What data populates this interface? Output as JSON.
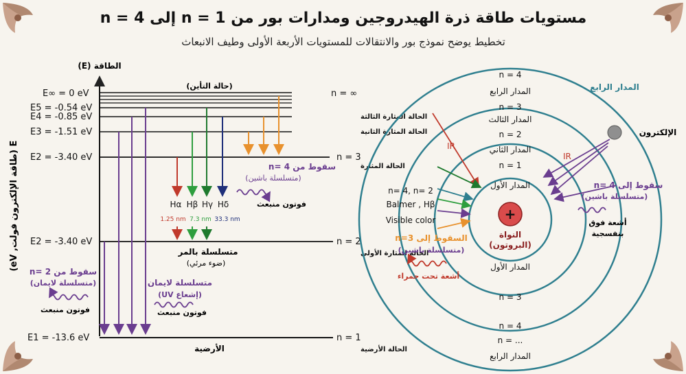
{
  "title": "مستويات طاقة ذرة الهيدروجين ومدارات بور من n = 1 إلى n = 4",
  "subtitle": "تخطيط يوضح نموذج بور والانتقالات للمستويات الأربعة الأولى وطيف الانبعاث",
  "energy": {
    "axis_label": "الطاقة (E)",
    "y_label": "E (طاقة الإلكترون فولت, eV)",
    "ionization_label": "(حالة التأين)",
    "levels": {
      "inf": "E∞ = 0 eV",
      "e5": "E5 = -0.54 eV",
      "e4": "E4 = -0.85 eV",
      "e3": "E3 = -1.51 eV",
      "e2a": "E2 = -3.40 eV",
      "e2b": "E2 = -3.40 eV",
      "e1": "E1 = -13.6 eV"
    },
    "n_labels": {
      "inf": "n = ∞",
      "n3": "n = 3",
      "n2": "n = 2",
      "n1": "n = 1"
    },
    "state_labels": {
      "third_excited": "الحالة المثارة الثالثة",
      "second_excited": "الحالة المثارة الثانية",
      "excited": "الحالة المثارة",
      "first_excited": "الحالة المثارة الأولى",
      "ground": "الحالة الأرضية",
      "ground_short": "الأرضية"
    },
    "paschen": {
      "line1": "سقوط من n= 4",
      "line2": "(متسلسلة باشين)",
      "photon": "فوتون منبعث"
    },
    "balmer": {
      "h_alpha": "Hα",
      "h_beta": "Hβ",
      "h_gamma": "Hγ",
      "h_delta": "Hδ",
      "wl1": "1.25 nm",
      "wl2": "7.3 nm",
      "wl3": "33.3 nm",
      "label1": "متسلسلة بالمر",
      "label2": "(ضوء مرئي)"
    },
    "lyman": {
      "line1": "متسلسلة لايمان",
      "line2": "(إشعاع UV)",
      "photon": "فوتون منبعث"
    },
    "lyman_left": {
      "line1": "سقوط من n= 2",
      "line2": "(متسلسلة لايمان)",
      "photon": "فوتون منبعث"
    }
  },
  "orbit": {
    "n4_top": "n = 4",
    "orbit4_top": "المدار الرابع",
    "orbit4_label": "المدار الرابع",
    "orbit3_top": "المدار الثالث",
    "n3_top": "n = 3",
    "n2_top": "n = 2",
    "orbit2_top": "المدار الثاني",
    "n1_top": "n = 1",
    "orbit1_top": "المدار الأول",
    "nucleus_plus": "+",
    "nucleus_line1": "النواة",
    "nucleus_line2": "(البروتون)",
    "orbit1_bottom": "المدار الأول",
    "n3_bottom": "n = 3",
    "n4_bottom": "n = 4",
    "n_dots": "n = ...",
    "orbit4_bottom": "المدار الرابع",
    "electron": "الإلكترون",
    "ir_left": "IR",
    "ir_right": "IR",
    "balmer_text1": "n= 4, n= 2",
    "balmer_text2": "Balmer , Hβ",
    "balmer_text3": "Visible color",
    "paschen_left1": "السقوط إلى n=3",
    "paschen_left2": "(متسلسلة باشين)",
    "infrared": "أشعة تحت حمراء",
    "paschen_right1": "سقوط إلى n= 4",
    "paschen_right2": "(متسلسلة باشين)",
    "uv1": "أشعة فوق",
    "uv2": "بنفسجية"
  },
  "colors": {
    "red": "#c0392b",
    "green": "#2e9e3e",
    "dark_green": "#1f7a2e",
    "navy": "#1f2f7a",
    "orange": "#e8912d",
    "purple": "#6a3d8f",
    "teal": "#2f7f8f"
  }
}
